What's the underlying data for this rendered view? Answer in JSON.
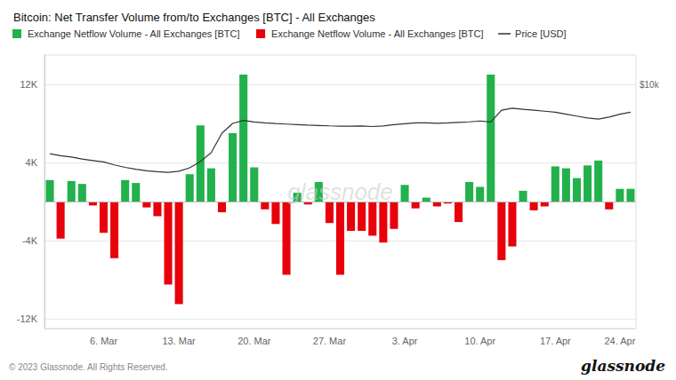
{
  "chart_data": {
    "type": "bar",
    "title": "Bitcoin: Net Transfer Volume from/to Exchanges [BTC] - All Exchanges",
    "categories": [
      null,
      null,
      null,
      null,
      null,
      "6. Mar",
      null,
      null,
      null,
      null,
      null,
      null,
      "13. Mar",
      null,
      null,
      null,
      null,
      null,
      null,
      "20. Mar",
      null,
      null,
      null,
      null,
      null,
      null,
      "27. Mar",
      null,
      null,
      null,
      null,
      null,
      null,
      "3. Apr",
      null,
      null,
      null,
      null,
      null,
      null,
      "10. Apr",
      null,
      null,
      null,
      null,
      null,
      null,
      "17. Apr",
      null,
      null,
      null,
      null,
      null,
      "24. Apr",
      null
    ],
    "series": [
      {
        "name": "Exchange Netflow Volume - All Exchanges [BTC]",
        "type": "bar",
        "color": "#22b14c",
        "values": [
          2200,
          null,
          2100,
          1800,
          null,
          null,
          null,
          2200,
          1900,
          null,
          null,
          null,
          null,
          2800,
          7800,
          3400,
          null,
          7000,
          13000,
          3500,
          null,
          null,
          null,
          900,
          null,
          2000,
          null,
          null,
          null,
          null,
          null,
          null,
          null,
          1700,
          null,
          400,
          null,
          null,
          null,
          2000,
          1500,
          13000,
          null,
          null,
          1100,
          null,
          null,
          3600,
          3400,
          2400,
          3700,
          4200,
          null,
          1300,
          1300
        ]
      },
      {
        "name": "Exchange Netflow Volume - All Exchanges [BTC]",
        "type": "bar",
        "color": "#e8000b",
        "values": [
          null,
          -3800,
          null,
          null,
          -400,
          -3200,
          -5800,
          null,
          null,
          -600,
          -1500,
          -8500,
          -10500,
          null,
          null,
          null,
          -1100,
          null,
          null,
          null,
          -800,
          -2300,
          -7500,
          null,
          -300,
          null,
          -2200,
          -7500,
          -3000,
          -3000,
          -3500,
          -4200,
          -2800,
          null,
          -700,
          null,
          -500,
          -200,
          -2100,
          null,
          null,
          null,
          -6000,
          -4600,
          null,
          -900,
          -500,
          null,
          null,
          null,
          null,
          null,
          -800,
          null,
          null
        ]
      },
      {
        "name": "Price [USD]",
        "type": "line",
        "color": "#333333",
        "values": [
          4900,
          4700,
          4550,
          4350,
          4200,
          4050,
          3750,
          3500,
          3300,
          3150,
          3050,
          2980,
          3100,
          3450,
          4100,
          5000,
          7000,
          8000,
          8300,
          8150,
          8050,
          7980,
          7930,
          7880,
          7830,
          7790,
          7750,
          7720,
          7720,
          7730,
          7680,
          7730,
          7870,
          7970,
          8060,
          8060,
          8020,
          8060,
          8110,
          8160,
          8250,
          8150,
          9350,
          9550,
          9450,
          9350,
          9250,
          9150,
          8950,
          8750,
          8550,
          8450,
          8650,
          8950,
          9150
        ]
      }
    ],
    "ylim": [
      -13000,
      15000
    ],
    "yticks": [
      {
        "value": -12000,
        "label": "-12K"
      },
      {
        "value": -4000,
        "label": "-4K"
      },
      {
        "value": 4000,
        "label": "4K"
      },
      {
        "value": 12000,
        "label": "12K"
      }
    ],
    "grid": true,
    "legend": "upper left",
    "annotations": [
      {
        "text": "$10k",
        "y": 12000
      },
      {
        "text": "glassnode"
      },
      {
        "text": "© 2023 Glassnode. All Rights Reserved."
      },
      {
        "text": "glassnode"
      }
    ]
  }
}
